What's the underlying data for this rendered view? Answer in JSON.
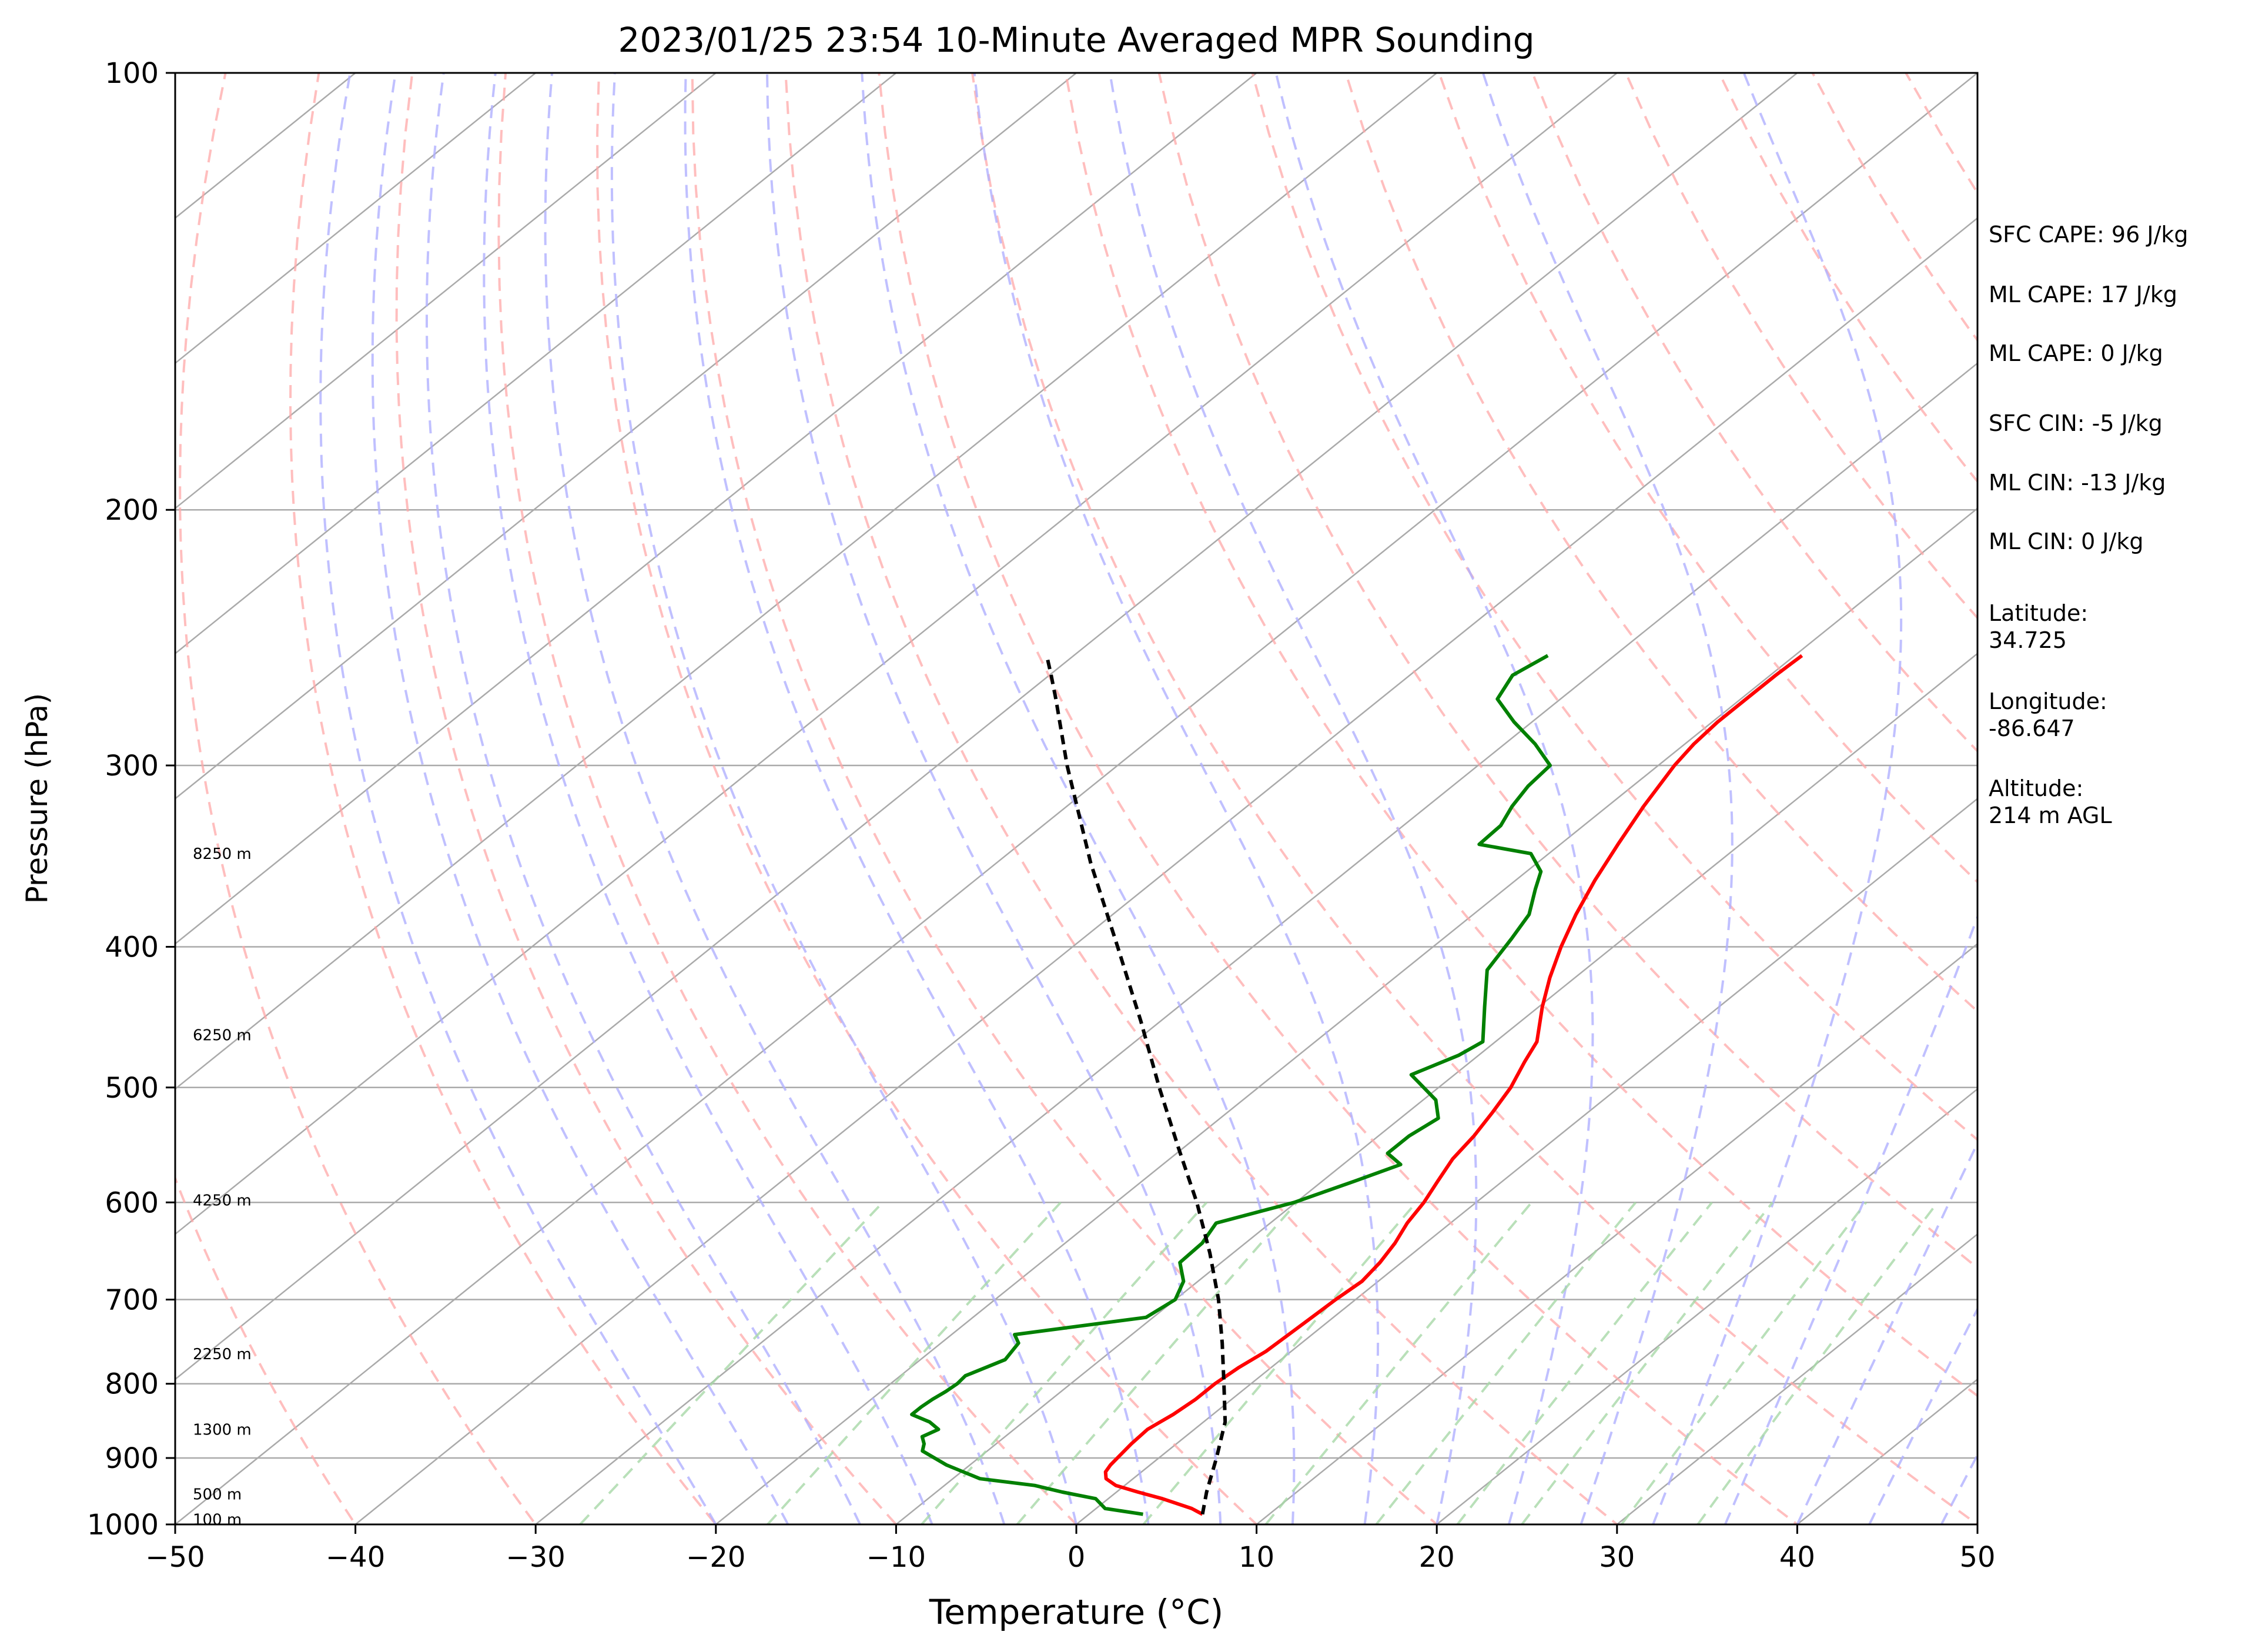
{
  "chart_data": {
    "type": "line",
    "title": "2023/01/25 23:54 10-Minute Averaged MPR Sounding",
    "xlabel": "Temperature (°C)",
    "ylabel": "Pressure (hPa)",
    "xlim": [
      -50,
      50
    ],
    "ylim": [
      1000,
      100
    ],
    "y_scale": "log",
    "x_ticks": [
      -50,
      -40,
      -30,
      -20,
      -10,
      0,
      10,
      20,
      30,
      40,
      50
    ],
    "x_tick_labels": [
      "−50",
      "−40",
      "−30",
      "−20",
      "−10",
      "0",
      "10",
      "20",
      "30",
      "40",
      "50"
    ],
    "y_ticks": [
      1000,
      900,
      800,
      700,
      600,
      500,
      400,
      300,
      200,
      100
    ],
    "y_tick_labels": [
      "1000",
      "900",
      "800",
      "700",
      "600",
      "500",
      "400",
      "300",
      "200",
      "100"
    ],
    "grid": true,
    "series": [
      {
        "role": "temperature",
        "color": "#ff0000",
        "pressure": [
          984,
          975,
          960,
          950,
          940,
          930,
          920,
          910,
          900,
          880,
          860,
          850,
          840,
          820,
          800,
          780,
          760,
          740,
          720,
          700,
          680,
          660,
          640,
          620,
          600,
          580,
          560,
          540,
          520,
          500,
          480,
          465,
          440,
          420,
          400,
          380,
          360,
          340,
          320,
          300,
          290,
          280,
          270,
          260,
          252
        ],
        "temp": [
          6.3,
          5.3,
          3.0,
          1.2,
          -0.5,
          -1.5,
          -2.0,
          -2.2,
          -2.3,
          -2.5,
          -2.6,
          -2.4,
          -2.2,
          -2.0,
          -2.0,
          -1.8,
          -1.4,
          -1.3,
          -1.2,
          -1.1,
          -0.9,
          -1.2,
          -1.7,
          -2.4,
          -2.9,
          -3.6,
          -4.3,
          -4.7,
          -5.3,
          -6.0,
          -7.0,
          -7.7,
          -9.8,
          -11.4,
          -12.9,
          -14.3,
          -15.6,
          -16.8,
          -18.0,
          -19.1,
          -19.5,
          -19.7,
          -19.7,
          -19.7,
          -19.6
        ]
      },
      {
        "role": "dewpoint",
        "color": "#008000",
        "pressure": [
          984,
          975,
          960,
          950,
          940,
          930,
          910,
          890,
          880,
          870,
          860,
          850,
          840,
          830,
          820,
          810,
          800,
          790,
          770,
          750,
          740,
          720,
          700,
          680,
          660,
          640,
          620,
          600,
          580,
          565,
          555,
          540,
          525,
          510,
          490,
          475,
          465,
          440,
          415,
          395,
          380,
          365,
          355,
          345,
          340,
          330,
          320,
          310,
          300,
          290,
          280,
          270,
          260,
          252
        ],
        "dewpoint": [
          3.0,
          0.5,
          -0.7,
          -3.0,
          -5.0,
          -8.5,
          -11.3,
          -13.6,
          -14.0,
          -14.6,
          -14.2,
          -15.2,
          -16.7,
          -16.7,
          -16.6,
          -16.4,
          -16.3,
          -16.4,
          -15.3,
          -15.7,
          -16.5,
          -10.4,
          -10.0,
          -10.8,
          -12.3,
          -12.4,
          -13.0,
          -10.1,
          -8.2,
          -6.8,
          -8.3,
          -8.3,
          -7.9,
          -9.3,
          -12.4,
          -11.1,
          -10.7,
          -13.0,
          -15.4,
          -16.2,
          -16.9,
          -18.3,
          -19.2,
          -21.0,
          -24.5,
          -24.6,
          -25.3,
          -25.8,
          -26.0,
          -28.3,
          -31.0,
          -33.5,
          -34.3,
          -33.7
        ]
      },
      {
        "role": "parcel profile",
        "color": "#000000",
        "dashed": true,
        "pressure": [
          984,
          950,
          900,
          850,
          800,
          750,
          700,
          650,
          600,
          550,
          500,
          450,
          400,
          350,
          300,
          270,
          260,
          252
        ],
        "temp": [
          6.3,
          5.0,
          3.2,
          1.2,
          -1.5,
          -4.4,
          -7.6,
          -11.3,
          -15.5,
          -20.3,
          -25.5,
          -31.1,
          -37.5,
          -44.8,
          -52.8,
          -58.0,
          -59.9,
          -61.5
        ]
      }
    ],
    "background_lines": {
      "isotherms_color": "#aaaaaa",
      "dry_adiabats_color": "#ffa8a8",
      "moist_adiabats_color": "#b0b0ff",
      "mixing_ratio_color": "#a8d8a8"
    },
    "height_labels": [
      {
        "text": "100 m",
        "pressure": 992
      },
      {
        "text": "500 m",
        "pressure": 953
      },
      {
        "text": "1300 m",
        "pressure": 860
      },
      {
        "text": "2250 m",
        "pressure": 763
      },
      {
        "text": "4250 m",
        "pressure": 598
      },
      {
        "text": "6250 m",
        "pressure": 460
      },
      {
        "text": "8250 m",
        "pressure": 345
      }
    ],
    "annotations": [
      {
        "key": "sfc_cape",
        "text": "SFC CAPE: 96 J/kg"
      },
      {
        "key": "ml_cape_1",
        "text": "ML CAPE: 17 J/kg"
      },
      {
        "key": "ml_cape_2",
        "text": "ML CAPE: 0 J/kg"
      },
      {
        "key": "sfc_cin",
        "text": "SFC CIN: -5 J/kg"
      },
      {
        "key": "ml_cin_1",
        "text": "ML CIN: -13 J/kg"
      },
      {
        "key": "ml_cin_2",
        "text": "ML CIN: 0 J/kg"
      },
      {
        "key": "latitude",
        "lines": [
          "Latitude:",
          "34.725"
        ]
      },
      {
        "key": "longitude",
        "lines": [
          "Longitude:",
          "-86.647"
        ]
      },
      {
        "key": "altitude",
        "lines": [
          "Altitude:",
          "214 m AGL"
        ]
      }
    ]
  }
}
